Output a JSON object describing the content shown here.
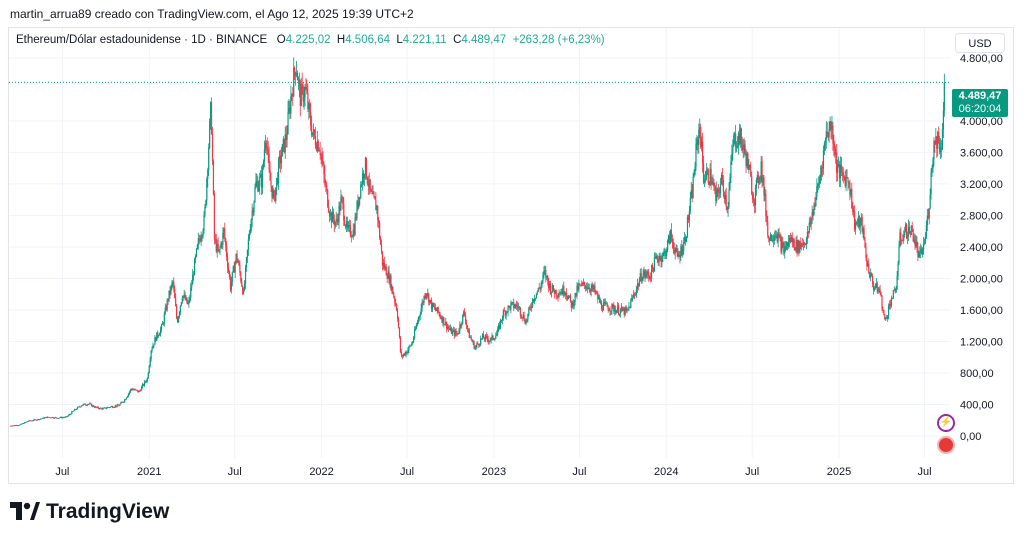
{
  "header": {
    "attribution": "martin_arrua89 creado con TradingView.com, el Ago 12, 2025 19:39 UTC+2"
  },
  "legend": {
    "symbol": "Ethereum/Dólar estadounidense · 1D · BINANCE",
    "o_label": "O",
    "o_value": "4.225,02",
    "h_label": "H",
    "h_value": "4.506,64",
    "l_label": "L",
    "l_value": "4.221,11",
    "c_label": "C",
    "c_value": "4.489,47",
    "change": "+263,28 (+6,23%)"
  },
  "currency_button": "USD",
  "last_price": {
    "value": "4.489,47",
    "countdown": "06:20:04"
  },
  "footer": {
    "brand": "TradingView"
  },
  "colors": {
    "up": "#089981",
    "down": "#f23645",
    "grid": "#f0f3fa",
    "price_line": "#089981"
  },
  "icons": [
    "bolt-icon",
    "flag-icon",
    "tradingview-logo-icon"
  ],
  "chart_data": {
    "type": "candlestick",
    "y_axis": {
      "ticks": [
        "4.800,00",
        "4.000,00",
        "3.600,00",
        "3.200,00",
        "2.800,00",
        "2.400,00",
        "2.000,00",
        "1.600,00",
        "1.200,00",
        "800,00",
        "400,00",
        "0,00"
      ],
      "tick_values": [
        4800,
        4000,
        3600,
        3200,
        2800,
        2400,
        2000,
        1600,
        1200,
        800,
        400,
        0
      ],
      "ylim": [
        -280,
        5180
      ]
    },
    "x_axis": {
      "labels": [
        "Jul",
        "2021",
        "Jul",
        "2022",
        "Jul",
        "2023",
        "Jul",
        "2024",
        "Jul",
        "2025",
        "Jul"
      ],
      "label_dates": [
        "2020-07-01",
        "2021-01-01",
        "2021-07-01",
        "2022-01-01",
        "2022-07-01",
        "2023-01-01",
        "2023-07-01",
        "2024-01-01",
        "2024-07-01",
        "2025-01-01",
        "2025-07-01"
      ],
      "xlim": [
        "2020-03-10",
        "2025-08-24"
      ]
    },
    "price_line": 4489.47,
    "series": [
      {
        "values": [
          [
            "2020-03-13",
            130
          ],
          [
            "2020-04-01",
            140
          ],
          [
            "2020-04-20",
            190
          ],
          [
            "2020-05-10",
            210
          ],
          [
            "2020-06-01",
            240
          ],
          [
            "2020-06-20",
            230
          ],
          [
            "2020-07-10",
            240
          ],
          [
            "2020-07-25",
            320
          ],
          [
            "2020-08-10",
            390
          ],
          [
            "2020-08-25",
            410
          ],
          [
            "2020-09-10",
            360
          ],
          [
            "2020-09-25",
            345
          ],
          [
            "2020-10-10",
            370
          ],
          [
            "2020-10-28",
            385
          ],
          [
            "2020-11-10",
            460
          ],
          [
            "2020-11-24",
            600
          ],
          [
            "2020-12-10",
            560
          ],
          [
            "2020-12-28",
            730
          ],
          [
            "2021-01-05",
            1100
          ],
          [
            "2021-01-15",
            1250
          ],
          [
            "2021-01-28",
            1380
          ],
          [
            "2021-02-10",
            1750
          ],
          [
            "2021-02-20",
            1950
          ],
          [
            "2021-03-01",
            1450
          ],
          [
            "2021-03-12",
            1800
          ],
          [
            "2021-03-25",
            1650
          ],
          [
            "2021-04-05",
            2100
          ],
          [
            "2021-04-15",
            2450
          ],
          [
            "2021-04-28",
            2750
          ],
          [
            "2021-05-05",
            3500
          ],
          [
            "2021-05-12",
            4200
          ],
          [
            "2021-05-19",
            2500
          ],
          [
            "2021-05-28",
            2300
          ],
          [
            "2021-06-08",
            2600
          ],
          [
            "2021-06-22",
            1900
          ],
          [
            "2021-07-05",
            2300
          ],
          [
            "2021-07-20",
            1800
          ],
          [
            "2021-08-01",
            2600
          ],
          [
            "2021-08-15",
            3200
          ],
          [
            "2021-08-28",
            3250
          ],
          [
            "2021-09-05",
            3900
          ],
          [
            "2021-09-12",
            3300
          ],
          [
            "2021-09-22",
            3000
          ],
          [
            "2021-10-05",
            3500
          ],
          [
            "2021-10-18",
            3800
          ],
          [
            "2021-10-28",
            4300
          ],
          [
            "2021-11-08",
            4750
          ],
          [
            "2021-11-16",
            4300
          ],
          [
            "2021-11-28",
            4400
          ],
          [
            "2021-12-05",
            4100
          ],
          [
            "2021-12-15",
            3800
          ],
          [
            "2021-12-28",
            3700
          ],
          [
            "2022-01-08",
            3200
          ],
          [
            "2022-01-20",
            2800
          ],
          [
            "2022-02-01",
            2700
          ],
          [
            "2022-02-12",
            3000
          ],
          [
            "2022-02-24",
            2600
          ],
          [
            "2022-03-10",
            2600
          ],
          [
            "2022-03-22",
            3100
          ],
          [
            "2022-04-03",
            3450
          ],
          [
            "2022-04-15",
            3050
          ],
          [
            "2022-04-28",
            2900
          ],
          [
            "2022-05-10",
            2200
          ],
          [
            "2022-05-25",
            2000
          ],
          [
            "2022-06-10",
            1600
          ],
          [
            "2022-06-18",
            1000
          ],
          [
            "2022-06-30",
            1070
          ],
          [
            "2022-07-12",
            1180
          ],
          [
            "2022-07-25",
            1500
          ],
          [
            "2022-08-10",
            1850
          ],
          [
            "2022-08-22",
            1650
          ],
          [
            "2022-09-05",
            1570
          ],
          [
            "2022-09-18",
            1450
          ],
          [
            "2022-10-01",
            1330
          ],
          [
            "2022-10-15",
            1290
          ],
          [
            "2022-10-30",
            1570
          ],
          [
            "2022-11-08",
            1300
          ],
          [
            "2022-11-22",
            1120
          ],
          [
            "2022-12-08",
            1250
          ],
          [
            "2022-12-25",
            1220
          ],
          [
            "2023-01-08",
            1300
          ],
          [
            "2023-01-20",
            1550
          ],
          [
            "2023-02-05",
            1650
          ],
          [
            "2023-02-20",
            1650
          ],
          [
            "2023-03-10",
            1450
          ],
          [
            "2023-03-25",
            1750
          ],
          [
            "2023-04-10",
            1900
          ],
          [
            "2023-04-18",
            2080
          ],
          [
            "2023-05-01",
            1870
          ],
          [
            "2023-05-15",
            1820
          ],
          [
            "2023-06-01",
            1860
          ],
          [
            "2023-06-15",
            1650
          ],
          [
            "2023-06-28",
            1880
          ],
          [
            "2023-07-15",
            1920
          ],
          [
            "2023-08-01",
            1850
          ],
          [
            "2023-08-17",
            1650
          ],
          [
            "2023-09-05",
            1630
          ],
          [
            "2023-09-25",
            1590
          ],
          [
            "2023-10-10",
            1570
          ],
          [
            "2023-10-25",
            1800
          ],
          [
            "2023-11-10",
            2050
          ],
          [
            "2023-11-28",
            2040
          ],
          [
            "2023-12-10",
            2250
          ],
          [
            "2023-12-28",
            2300
          ],
          [
            "2024-01-10",
            2550
          ],
          [
            "2024-01-25",
            2250
          ],
          [
            "2024-02-10",
            2500
          ],
          [
            "2024-02-25",
            3100
          ],
          [
            "2024-03-05",
            3650
          ],
          [
            "2024-03-12",
            3950
          ],
          [
            "2024-03-20",
            3300
          ],
          [
            "2024-04-05",
            3300
          ],
          [
            "2024-04-15",
            3000
          ],
          [
            "2024-04-28",
            3250
          ],
          [
            "2024-05-10",
            2900
          ],
          [
            "2024-05-22",
            3750
          ],
          [
            "2024-06-05",
            3800
          ],
          [
            "2024-06-20",
            3500
          ],
          [
            "2024-07-05",
            3000
          ],
          [
            "2024-07-20",
            3450
          ],
          [
            "2024-08-05",
            2500
          ],
          [
            "2024-08-20",
            2600
          ],
          [
            "2024-09-05",
            2350
          ],
          [
            "2024-09-20",
            2500
          ],
          [
            "2024-10-05",
            2400
          ],
          [
            "2024-10-25",
            2500
          ],
          [
            "2024-11-08",
            2900
          ],
          [
            "2024-11-22",
            3300
          ],
          [
            "2024-12-05",
            3850
          ],
          [
            "2024-12-16",
            3950
          ],
          [
            "2024-12-28",
            3400
          ],
          [
            "2025-01-08",
            3300
          ],
          [
            "2025-01-22",
            3250
          ],
          [
            "2025-02-03",
            2700
          ],
          [
            "2025-02-18",
            2700
          ],
          [
            "2025-03-01",
            2200
          ],
          [
            "2025-03-15",
            1900
          ],
          [
            "2025-03-28",
            1850
          ],
          [
            "2025-04-08",
            1450
          ],
          [
            "2025-04-22",
            1750
          ],
          [
            "2025-05-01",
            1840
          ],
          [
            "2025-05-10",
            2500
          ],
          [
            "2025-05-22",
            2600
          ],
          [
            "2025-06-05",
            2600
          ],
          [
            "2025-06-20",
            2250
          ],
          [
            "2025-07-01",
            2450
          ],
          [
            "2025-07-10",
            2900
          ],
          [
            "2025-07-20",
            3700
          ],
          [
            "2025-07-30",
            3800
          ],
          [
            "2025-08-05",
            3600
          ],
          [
            "2025-08-10",
            4225
          ],
          [
            "2025-08-12",
            4489.47
          ]
        ]
      }
    ]
  }
}
